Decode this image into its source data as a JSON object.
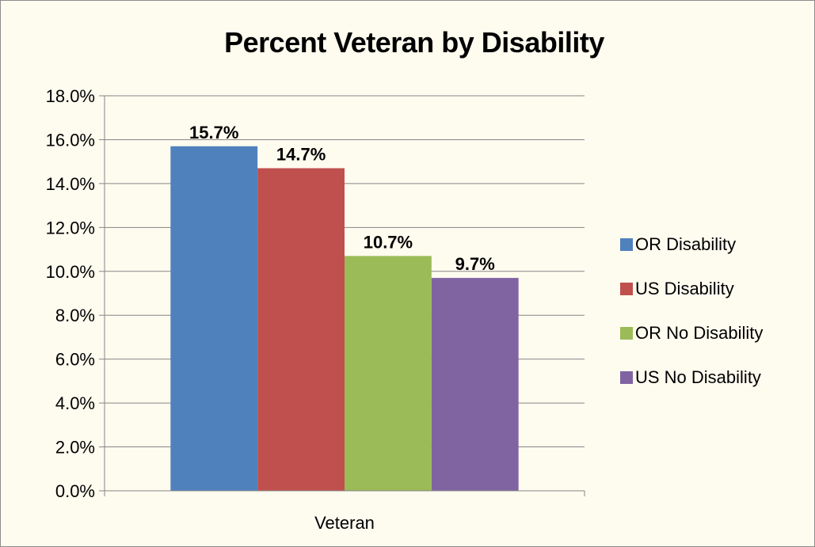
{
  "chart_data": {
    "type": "bar",
    "title": "Percent Veteran by Disability",
    "categories": [
      "Veteran"
    ],
    "series": [
      {
        "name": "OR Disability",
        "values": [
          15.7
        ],
        "label": "15.7%",
        "color": "#4f81bd"
      },
      {
        "name": "US Disability",
        "values": [
          14.7
        ],
        "label": "14.7%",
        "color": "#c0504d"
      },
      {
        "name": "OR No Disability",
        "values": [
          10.7
        ],
        "label": "10.7%",
        "color": "#9bbb59"
      },
      {
        "name": "US No Disability",
        "values": [
          9.7
        ],
        "label": "9.7%",
        "color": "#8064a2"
      }
    ],
    "ylim": [
      0,
      18
    ],
    "yticks": [
      "0.0%",
      "2.0%",
      "4.0%",
      "6.0%",
      "8.0%",
      "10.0%",
      "12.0%",
      "14.0%",
      "16.0%",
      "18.0%"
    ],
    "grid": true,
    "legend_position": "right",
    "xlabel": "",
    "ylabel": ""
  }
}
